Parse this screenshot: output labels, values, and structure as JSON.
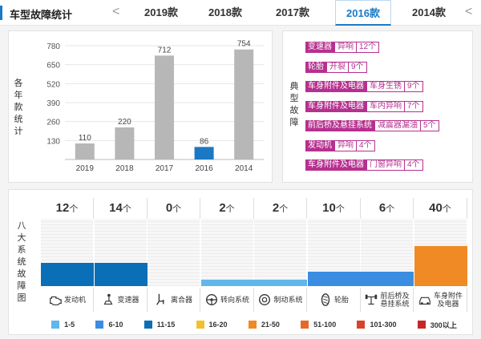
{
  "header": {
    "title": "车型故障统计",
    "prev": "<",
    "next": "<",
    "tabs": [
      {
        "label": "2019款",
        "active": false
      },
      {
        "label": "2018款",
        "active": false
      },
      {
        "label": "2017款",
        "active": false
      },
      {
        "label": "2016款",
        "active": true
      },
      {
        "label": "2014款",
        "active": false
      }
    ]
  },
  "yearly": {
    "ylabel": "各年款统计",
    "chart_data": {
      "type": "bar",
      "categories": [
        "2019",
        "2018",
        "2017",
        "2016",
        "2014"
      ],
      "values": [
        110,
        220,
        712,
        86,
        754
      ],
      "yticks": [
        130,
        260,
        390,
        520,
        650,
        780
      ],
      "ylim": [
        0,
        780
      ],
      "highlight": "2016",
      "colors": {
        "normal": "#b7b7b7",
        "highlight": "#1a78c4"
      }
    }
  },
  "typical": {
    "label": "典型故障",
    "items": [
      {
        "part": "变速器",
        "issue": "异响",
        "count": "12个"
      },
      {
        "part": "轮胎",
        "issue": "开裂",
        "count": "9个"
      },
      {
        "part": "车身附件及电器",
        "issue": "车身生锈",
        "count": "9个"
      },
      {
        "part": "车身附件及电器",
        "issue": "车内异响",
        "count": "7个"
      },
      {
        "part": "前后桥及悬挂系统",
        "issue": "减震器漏油",
        "count": "5个"
      },
      {
        "part": "发动机",
        "issue": "异响",
        "count": "4个"
      },
      {
        "part": "车身附件及电器",
        "issue": "门窗异响",
        "count": "4个"
      }
    ],
    "color": "#b5308f"
  },
  "systems": {
    "label": "八大系统故障图",
    "unit": "个",
    "items": [
      {
        "name": "发动机",
        "icon": "engine-icon",
        "count": "12",
        "level": 0.35,
        "color": "#0a6fb6"
      },
      {
        "name": "变速器",
        "icon": "gear-shift-icon",
        "count": "14",
        "level": 0.35,
        "color": "#0a6fb6"
      },
      {
        "name": "离合器",
        "icon": "clutch-pedal-icon",
        "count": "0",
        "level": 0,
        "color": "#5fb7ec"
      },
      {
        "name": "转向系统",
        "icon": "steering-wheel-icon",
        "count": "2",
        "level": 0.1,
        "color": "#5fb7ec"
      },
      {
        "name": "制动系统",
        "icon": "brake-disc-icon",
        "count": "2",
        "level": 0.1,
        "color": "#5fb7ec"
      },
      {
        "name": "轮胎",
        "icon": "tire-icon",
        "count": "10",
        "level": 0.22,
        "color": "#3a8de0"
      },
      {
        "name": "前后桥及\n悬挂系统",
        "icon": "suspension-icon",
        "count": "6",
        "level": 0.22,
        "color": "#3a8de0"
      },
      {
        "name": "车身附件\n及电器",
        "icon": "car-body-icon",
        "count": "40",
        "level": 0.6,
        "color": "#f08a24"
      }
    ],
    "legend": [
      {
        "label": "1-5",
        "color": "#5fb7ec"
      },
      {
        "label": "6-10",
        "color": "#3a8de0"
      },
      {
        "label": "11-15",
        "color": "#0a6fb6"
      },
      {
        "label": "16-20",
        "color": "#f2c12e"
      },
      {
        "label": "21-50",
        "color": "#f08a24"
      },
      {
        "label": "51-100",
        "color": "#e8682a"
      },
      {
        "label": "101-300",
        "color": "#d8432c"
      },
      {
        "label": "300以上",
        "color": "#c62828"
      }
    ]
  }
}
